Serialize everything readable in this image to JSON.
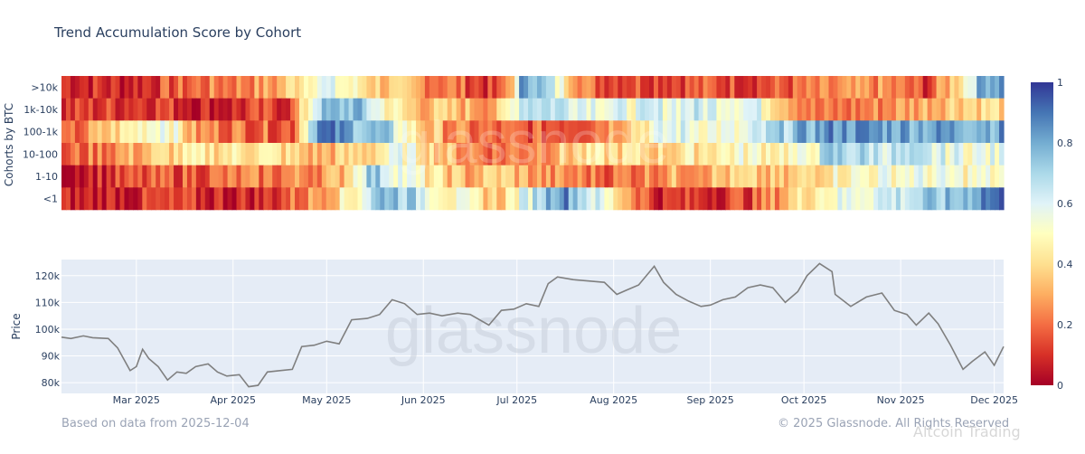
{
  "header": {
    "title": "Trend Accumulation Score by Cohort"
  },
  "footer": {
    "left": "Based on data from 2025-12-04",
    "right": "© 2025 Glassnode. All Rights Reserved",
    "overlay": "Altcoin Trading"
  },
  "watermark": "glassnode",
  "colors": {
    "plot_bg": "#e5ecf6",
    "price_line": "#7f7f7f",
    "colorscale": [
      "#a50026",
      "#d73027",
      "#f46d43",
      "#fdae61",
      "#fee090",
      "#ffffbf",
      "#e0f3f8",
      "#abd9e9",
      "#74add1",
      "#4575b4",
      "#313695"
    ]
  },
  "chart_data": [
    {
      "type": "heatmap",
      "title": "Trend Accumulation Score by Cohort",
      "ylabel": "Cohorts by BTC",
      "rows": [
        ">10k",
        "1k-10k",
        "100-1k",
        "10-100",
        "1-10",
        "<1"
      ],
      "colorbar": {
        "range": [
          0,
          1
        ],
        "ticks": [
          "0",
          "0.2",
          "0.4",
          "0.6",
          "0.8",
          "1"
        ]
      },
      "x_range": [
        "2025-02-05",
        "2025-12-04"
      ],
      "segments": {
        ">10k": [
          [
            "2025-02-05",
            0.12
          ],
          [
            "2025-02-25",
            0.08
          ],
          [
            "2025-03-20",
            0.2
          ],
          [
            "2025-04-15",
            0.28
          ],
          [
            "2025-04-28",
            0.6
          ],
          [
            "2025-05-15",
            0.4
          ],
          [
            "2025-05-25",
            0.3
          ],
          [
            "2025-06-10",
            0.22
          ],
          [
            "2025-06-25",
            0.08
          ],
          [
            "2025-07-01",
            0.5
          ],
          [
            "2025-07-03",
            0.92
          ],
          [
            "2025-07-25",
            0.18
          ],
          [
            "2025-09-20",
            0.15
          ],
          [
            "2025-10-25",
            0.25
          ],
          [
            "2025-11-10",
            0.12
          ],
          [
            "2025-11-20",
            0.45
          ],
          [
            "2025-11-24",
            0.65
          ],
          [
            "2025-11-28",
            0.85
          ],
          [
            "2025-12-04",
            0.85
          ]
        ],
        "1k-10k": [
          [
            "2025-02-05",
            0.1
          ],
          [
            "2025-03-05",
            0.15
          ],
          [
            "2025-03-25",
            0.07
          ],
          [
            "2025-04-20",
            0.14
          ],
          [
            "2025-04-28",
            0.7
          ],
          [
            "2025-05-10",
            0.78
          ],
          [
            "2025-05-20",
            0.5
          ],
          [
            "2025-05-28",
            0.35
          ],
          [
            "2025-06-25",
            0.3
          ],
          [
            "2025-07-03",
            0.72
          ],
          [
            "2025-07-20",
            0.65
          ],
          [
            "2025-08-05",
            0.55
          ],
          [
            "2025-08-25",
            0.62
          ],
          [
            "2025-09-15",
            0.6
          ],
          [
            "2025-10-05",
            0.18
          ],
          [
            "2025-10-20",
            0.22
          ],
          [
            "2025-11-05",
            0.3
          ],
          [
            "2025-11-20",
            0.4
          ],
          [
            "2025-12-04",
            0.4
          ]
        ],
        "100-1k": [
          [
            "2025-02-05",
            0.1
          ],
          [
            "2025-02-20",
            0.35
          ],
          [
            "2025-03-10",
            0.62
          ],
          [
            "2025-03-20",
            0.25
          ],
          [
            "2025-04-20",
            0.18
          ],
          [
            "2025-04-28",
            0.9
          ],
          [
            "2025-05-20",
            0.7
          ],
          [
            "2025-06-01",
            0.35
          ],
          [
            "2025-06-15",
            0.2
          ],
          [
            "2025-07-01",
            0.15
          ],
          [
            "2025-07-25",
            0.22
          ],
          [
            "2025-08-20",
            0.6
          ],
          [
            "2025-09-10",
            0.5
          ],
          [
            "2025-09-25",
            0.72
          ],
          [
            "2025-10-10",
            0.85
          ],
          [
            "2025-11-05",
            0.82
          ],
          [
            "2025-12-04",
            0.82
          ]
        ],
        "10-100": [
          [
            "2025-02-05",
            0.15
          ],
          [
            "2025-02-20",
            0.25
          ],
          [
            "2025-03-15",
            0.4
          ],
          [
            "2025-04-10",
            0.45
          ],
          [
            "2025-04-28",
            0.3
          ],
          [
            "2025-05-15",
            0.4
          ],
          [
            "2025-05-25",
            0.55
          ],
          [
            "2025-06-10",
            0.3
          ],
          [
            "2025-06-25",
            0.2
          ],
          [
            "2025-07-10",
            0.3
          ],
          [
            "2025-07-25",
            0.4
          ],
          [
            "2025-08-15",
            0.38
          ],
          [
            "2025-09-10",
            0.5
          ],
          [
            "2025-10-01",
            0.48
          ],
          [
            "2025-10-10",
            0.72
          ],
          [
            "2025-11-10",
            0.6
          ],
          [
            "2025-11-25",
            0.55
          ],
          [
            "2025-12-04",
            0.55
          ]
        ],
        "1-10": [
          [
            "2025-02-05",
            0.06
          ],
          [
            "2025-02-25",
            0.12
          ],
          [
            "2025-03-20",
            0.18
          ],
          [
            "2025-04-15",
            0.22
          ],
          [
            "2025-05-05",
            0.3
          ],
          [
            "2025-05-15",
            0.75
          ],
          [
            "2025-06-01",
            0.45
          ],
          [
            "2025-06-15",
            0.3
          ],
          [
            "2025-06-25",
            0.38
          ],
          [
            "2025-07-10",
            0.25
          ],
          [
            "2025-08-01",
            0.2
          ],
          [
            "2025-08-20",
            0.3
          ],
          [
            "2025-09-10",
            0.35
          ],
          [
            "2025-09-25",
            0.3
          ],
          [
            "2025-10-10",
            0.48
          ],
          [
            "2025-11-05",
            0.55
          ],
          [
            "2025-11-20",
            0.5
          ],
          [
            "2025-12-04",
            0.5
          ]
        ],
        "<1": [
          [
            "2025-02-05",
            0.05
          ],
          [
            "2025-03-05",
            0.1
          ],
          [
            "2025-04-10",
            0.08
          ],
          [
            "2025-04-25",
            0.25
          ],
          [
            "2025-05-10",
            0.5
          ],
          [
            "2025-05-20",
            0.82
          ],
          [
            "2025-06-10",
            0.5
          ],
          [
            "2025-06-25",
            0.35
          ],
          [
            "2025-07-15",
            0.9
          ],
          [
            "2025-08-15",
            0.08
          ],
          [
            "2025-09-15",
            0.15
          ],
          [
            "2025-10-05",
            0.5
          ],
          [
            "2025-10-25",
            0.62
          ],
          [
            "2025-11-20",
            0.75
          ],
          [
            "2025-11-28",
            0.9
          ],
          [
            "2025-12-04",
            0.9
          ]
        ]
      }
    },
    {
      "type": "line",
      "ylabel": "Price",
      "x_ticks": [
        "Mar 2025",
        "Apr 2025",
        "May 2025",
        "Jun 2025",
        "Jul 2025",
        "Aug 2025",
        "Sep 2025",
        "Oct 2025",
        "Nov 2025",
        "Dec 2025"
      ],
      "x_tick_dates": [
        "2025-03-01",
        "2025-04-01",
        "2025-05-01",
        "2025-06-01",
        "2025-07-01",
        "2025-08-01",
        "2025-09-01",
        "2025-10-01",
        "2025-11-01",
        "2025-12-01"
      ],
      "y_ticks": [
        "80k",
        "90k",
        "100k",
        "110k",
        "120k"
      ],
      "y_tick_values": [
        80000,
        90000,
        100000,
        110000,
        120000
      ],
      "ylim": [
        76000,
        126000
      ],
      "x_range": [
        "2025-02-05",
        "2025-12-04"
      ],
      "series": [
        {
          "x": [
            "2025-02-05",
            "2025-02-08",
            "2025-02-12",
            "2025-02-15",
            "2025-02-20",
            "2025-02-23",
            "2025-02-27",
            "2025-03-01",
            "2025-03-03",
            "2025-03-05",
            "2025-03-08",
            "2025-03-11",
            "2025-03-14",
            "2025-03-17",
            "2025-03-20",
            "2025-03-24",
            "2025-03-27",
            "2025-03-30",
            "2025-04-03",
            "2025-04-06",
            "2025-04-09",
            "2025-04-12",
            "2025-04-16",
            "2025-04-20",
            "2025-04-23",
            "2025-04-27",
            "2025-05-01",
            "2025-05-05",
            "2025-05-09",
            "2025-05-14",
            "2025-05-18",
            "2025-05-22",
            "2025-05-26",
            "2025-05-30",
            "2025-06-03",
            "2025-06-07",
            "2025-06-12",
            "2025-06-16",
            "2025-06-22",
            "2025-06-26",
            "2025-06-30",
            "2025-07-04",
            "2025-07-08",
            "2025-07-11",
            "2025-07-14",
            "2025-07-19",
            "2025-07-24",
            "2025-07-29",
            "2025-08-02",
            "2025-08-05",
            "2025-08-09",
            "2025-08-14",
            "2025-08-17",
            "2025-08-21",
            "2025-08-25",
            "2025-08-29",
            "2025-09-01",
            "2025-09-05",
            "2025-09-09",
            "2025-09-13",
            "2025-09-17",
            "2025-09-21",
            "2025-09-25",
            "2025-09-29",
            "2025-10-02",
            "2025-10-06",
            "2025-10-10",
            "2025-10-11",
            "2025-10-16",
            "2025-10-21",
            "2025-10-26",
            "2025-10-30",
            "2025-11-03",
            "2025-11-06",
            "2025-11-10",
            "2025-11-13",
            "2025-11-17",
            "2025-11-21",
            "2025-11-24",
            "2025-11-28",
            "2025-12-01",
            "2025-12-04"
          ],
          "y": [
            97000,
            96500,
            97500,
            96800,
            96500,
            93000,
            84500,
            86000,
            92500,
            89000,
            86000,
            81000,
            84000,
            83500,
            86000,
            87000,
            84000,
            82500,
            83000,
            78500,
            79000,
            84000,
            84500,
            85000,
            93500,
            94000,
            95500,
            94500,
            103500,
            104000,
            105500,
            111000,
            109500,
            105500,
            106000,
            105000,
            106000,
            105500,
            101500,
            107000,
            107500,
            109500,
            108500,
            117000,
            119500,
            118500,
            118000,
            117500,
            113000,
            114500,
            116500,
            123500,
            117500,
            113000,
            110500,
            108500,
            109000,
            111000,
            112000,
            115500,
            116500,
            115500,
            110000,
            114000,
            120000,
            124500,
            121500,
            113000,
            108500,
            112000,
            113500,
            107000,
            105500,
            101500,
            106000,
            102000,
            94000,
            85000,
            88000,
            91500,
            86500,
            93500
          ]
        }
      ]
    }
  ]
}
